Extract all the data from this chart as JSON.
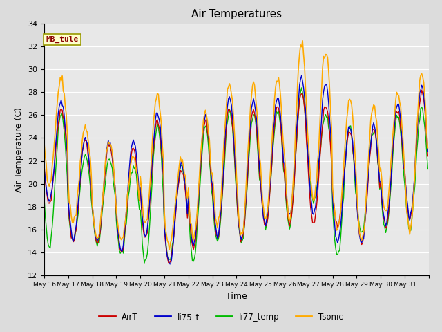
{
  "title": "Air Temperatures",
  "ylabel": "Air Temperature (C)",
  "xlabel": "Time",
  "ylim": [
    12,
    34
  ],
  "yticks": [
    12,
    14,
    16,
    18,
    20,
    22,
    24,
    26,
    28,
    30,
    32,
    34
  ],
  "background_color": "#dcdcdc",
  "plot_bg_color": "#e8e8e8",
  "grid_color": "#ffffff",
  "series": {
    "AirT": {
      "color": "#cc0000",
      "lw": 1.0
    },
    "li75_t": {
      "color": "#0000cc",
      "lw": 1.0
    },
    "li77_temp": {
      "color": "#00bb00",
      "lw": 1.0
    },
    "Tsonic": {
      "color": "#ffaa00",
      "lw": 1.2
    }
  },
  "annotation": {
    "text": "MB_tule",
    "fontsize": 8,
    "color": "#8b0000",
    "bbox_facecolor": "#ffffcc",
    "bbox_edgecolor": "#999900"
  },
  "x_tick_labels": [
    "May 16",
    "May 17",
    "May 18",
    "May 19",
    "May 20",
    "May 21",
    "May 22",
    "May 23",
    "May 24",
    "May 25",
    "May 26",
    "May 27",
    "May 28",
    "May 29",
    "May 30",
    "May 31"
  ],
  "n_days": 16,
  "points_per_day": 24,
  "figsize": [
    6.4,
    4.8
  ],
  "dpi": 100
}
